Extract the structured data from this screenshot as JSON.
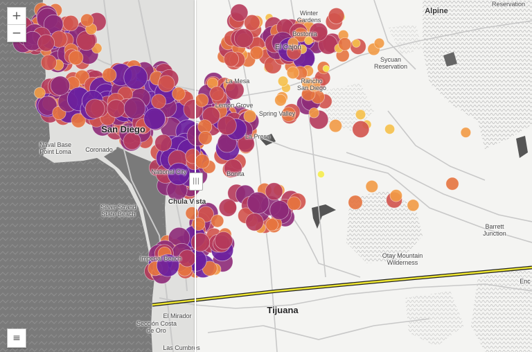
{
  "map": {
    "colors": {
      "water": "#7a7a7a",
      "land_left": "#e0e0de",
      "land_right": "#f4f4f2",
      "roads": "#c8c8c8",
      "border": "#e8e020",
      "terrain": "#b5b5b5",
      "points": [
        "#f5ec4c",
        "#f5c04a",
        "#f29a45",
        "#e6743f",
        "#d1534d",
        "#b53a5b",
        "#8d2a78",
        "#6a1f9e"
      ]
    },
    "labels": {
      "alpine": "Alpine",
      "reservation_top": "Reservation",
      "winter_gardens": "Winter\nGardens",
      "bostonia": "Bostonia",
      "el_cajon": "El Cajon",
      "sycuan": "Sycuan\nReservation",
      "la_mesa": "La Mesa",
      "rancho_san_diego": "Rancho\nSan Diego",
      "lemon_grove": "Lemon Grove",
      "spring_valley": "Spring Valley",
      "san_diego": "San Diego",
      "la_presa": "La Presa",
      "naval_base": "Naval Base\nPoint Loma",
      "coronado": "Coronado",
      "national_city": "National City",
      "bonita": "Bonita",
      "chula_vista": "Chula Vista",
      "silver_strand": "Silver Strand\nState Beach",
      "barrett": "Barrett\nJunction",
      "otay": "Otay Mountain\nWilderness",
      "imperial_beach": "Imperial Beach",
      "tijuana": "Tijuana",
      "el_mirador": "El Mirador",
      "seccion": "Sección Costa\nde Oro",
      "las_cumbres": "Las Cumbres",
      "enc": "Enc"
    },
    "controls": {
      "zoom_in": "+",
      "zoom_out": "−",
      "legend": "≡",
      "swipe_handle": "|||"
    }
  }
}
